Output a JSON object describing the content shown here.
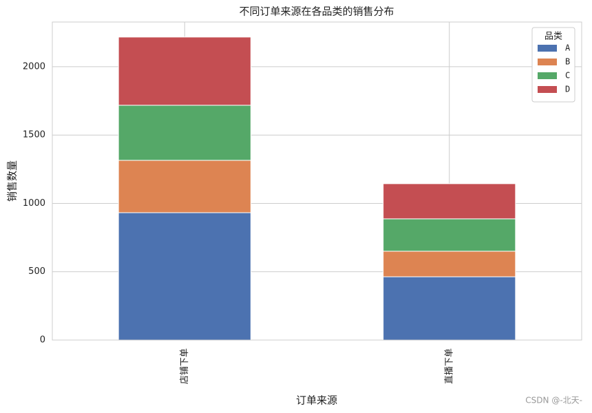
{
  "chart_data": {
    "type": "stacked_bar",
    "title": "不同订单来源在各品类的销售分布",
    "x_label": "订单来源",
    "y_label": "销售数量",
    "categories": [
      "店铺下单",
      "直播下单"
    ],
    "series": [
      {
        "name": "A",
        "color": "#4c72b0",
        "values": [
          932,
          463
        ]
      },
      {
        "name": "B",
        "color": "#dd8452",
        "values": [
          383,
          187
        ]
      },
      {
        "name": "C",
        "color": "#55a868",
        "values": [
          403,
          237
        ]
      },
      {
        "name": "D",
        "color": "#c44e52",
        "values": [
          499,
          257
        ]
      }
    ],
    "ylim": [
      0,
      2327
    ],
    "yticks": [
      0,
      500,
      1000,
      1500,
      2000
    ],
    "grid": true,
    "legend_title": "品类",
    "legend_position": "upper right",
    "watermark": "CSDN @-北天-"
  }
}
